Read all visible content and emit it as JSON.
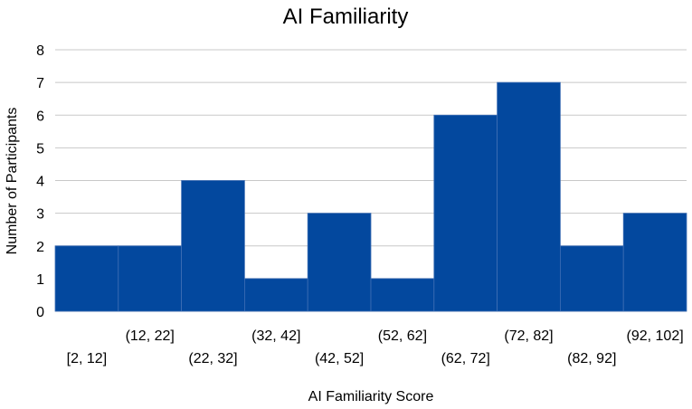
{
  "chart_data": {
    "type": "bar",
    "title": "AI Familiarity",
    "xlabel": "AI Familiarity Score",
    "ylabel": "Number of Participants",
    "categories": [
      "[2, 12]",
      "(12, 22]",
      "(22, 32]",
      "(32, 42]",
      "(42, 52]",
      "(52, 62]",
      "(62, 72]",
      "(72, 82]",
      "(82, 92]",
      "(92, 102]"
    ],
    "values": [
      2,
      2,
      4,
      1,
      3,
      1,
      6,
      7,
      2,
      3
    ],
    "ylim": [
      0,
      8
    ],
    "yticks": [
      0,
      1,
      2,
      3,
      4,
      5,
      6,
      7,
      8
    ],
    "grid": true,
    "legend": "none",
    "bar_color": "#03489E",
    "grid_color": "#C8C8C8"
  }
}
